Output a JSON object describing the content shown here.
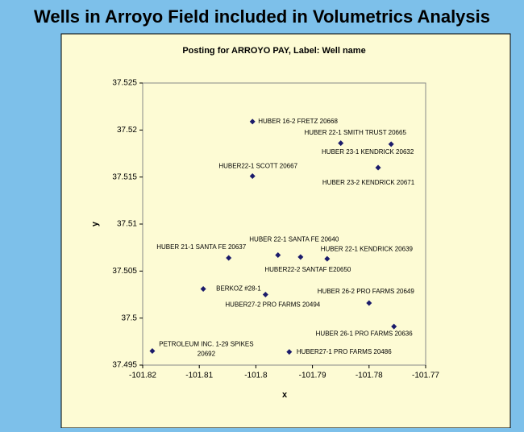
{
  "chart_data": {
    "type": "scatter",
    "title": "Wells in Arroyo Field included in Volumetrics Analysis",
    "subtitle": "Posting for ARROYO PAY, Label: Well name",
    "x_label": "x",
    "y_label": "y",
    "xlim": [
      -101.82,
      -101.77
    ],
    "xticks": [
      -101.82,
      -101.81,
      -101.8,
      -101.79,
      -101.78,
      -101.77
    ],
    "ylim": [
      37.495,
      37.525
    ],
    "yticks": [
      37.495,
      37.5,
      37.505,
      37.51,
      37.515,
      37.52,
      37.525
    ],
    "color": "#1b1b6b",
    "x": [
      -101.8006,
      -101.785,
      -101.7761,
      -101.7784,
      -101.8006,
      -101.8048,
      -101.7961,
      -101.7921,
      -101.7874,
      -101.8093,
      -101.7983,
      -101.78,
      -101.7756,
      -101.8183,
      -101.7941
    ],
    "y": [
      37.5209,
      37.5186,
      37.5185,
      37.516,
      37.5151,
      37.5064,
      37.5067,
      37.5065,
      37.5063,
      37.5031,
      37.5025,
      37.5016,
      37.4991,
      37.4965,
      37.4964
    ],
    "labels": [
      "HUBER 16-2 FRETZ 20668",
      "HUBER 22-1 SMITH TRUST 20665",
      "HUBER 23-1 KENDRICK 20632",
      "HUBER 23-2 KENDRICK 20671",
      "HUBER22-1 SCOTT 20667",
      "HUBER 21-1 SANTA FE 20637",
      "HUBER 22-1 SANTA FE 20640",
      "HUBER22-2 SANTAF E20650",
      "HUBER 22-1 KENDRICK 20639",
      "BERKOZ #28-1",
      "HUBER27-2 PRO FARMS 20494",
      "HUBER 26-2 PRO FARMS 20649",
      "HUBER 26-1 PRO FARMS 20636",
      [
        "PETROLEUM INC. 1-29 SPIKES",
        "20692"
      ],
      "HUBER27-1 PRO FARMS 20486"
    ]
  }
}
